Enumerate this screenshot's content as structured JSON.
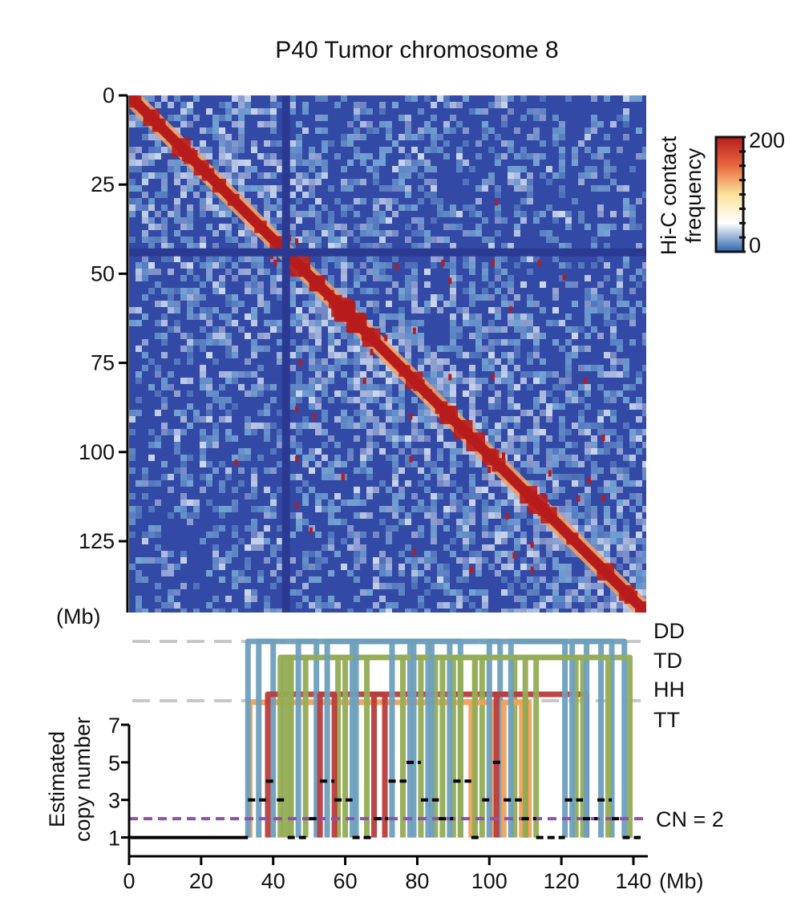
{
  "chart_data": [
    {
      "type": "heatmap",
      "title": "P40 Tumor chromosome 8",
      "axis_unit": "(Mb)",
      "y_ticks": [
        0,
        25,
        50,
        75,
        100,
        125
      ],
      "range_mb": [
        0,
        145
      ],
      "centromere_gap_mb": 44,
      "colorbar": {
        "label_line1": "Hi-C contact",
        "label_line2": "frequency",
        "min_label": "0",
        "max_label": "200",
        "min": 0,
        "max": 200,
        "colors": [
          "#2c66ad",
          "#ffffff",
          "#fbe39c",
          "#e9693f",
          "#b71c1c"
        ]
      },
      "colors": {
        "background": "#3349a6",
        "mid": "#7fb3dc",
        "light": "#e6f2fa",
        "diagonal": "#b71c1c",
        "halo": "#f4a261"
      },
      "hotspots_mb": [
        [
          40,
          45
        ],
        [
          41,
          47
        ],
        [
          48,
          50
        ],
        [
          75,
          48
        ],
        [
          88,
          47
        ],
        [
          102,
          47
        ],
        [
          72,
          68
        ],
        [
          80,
          66
        ],
        [
          90,
          79
        ],
        [
          102,
          79
        ],
        [
          105,
          101
        ],
        [
          118,
          106
        ],
        [
          126,
          113
        ],
        [
          80,
          128
        ],
        [
          96,
          133
        ],
        [
          113,
          133
        ],
        [
          52,
          90
        ],
        [
          60,
          107
        ],
        [
          47,
          115
        ],
        [
          30,
          103
        ],
        [
          129,
          108
        ],
        [
          122,
          51
        ]
      ]
    },
    {
      "type": "line",
      "ylabel_line1": "Estimated",
      "ylabel_line2": "copy number",
      "xlabel": "(Mb)",
      "x_ticks": [
        0,
        20,
        40,
        60,
        80,
        100,
        120,
        140
      ],
      "y_ticks": [
        1,
        3,
        5,
        7
      ],
      "xlim": [
        0,
        142
      ],
      "ylim": [
        0,
        7
      ],
      "reference": {
        "label": "CN = 2",
        "value": 2,
        "color": "#8e4fb0"
      },
      "sv_types": [
        {
          "name": "DD",
          "color": "#6d9fbd"
        },
        {
          "name": "TD",
          "color": "#93ad55"
        },
        {
          "name": "HH",
          "color": "#b93c3c"
        },
        {
          "name": "TT",
          "color": "#f0a15c"
        }
      ],
      "segments": [
        {
          "x0": 0,
          "x1": 33,
          "cn": 1
        },
        {
          "x0": 33,
          "x1": 38,
          "cn": 3
        },
        {
          "x0": 38,
          "x1": 41,
          "cn": 4
        },
        {
          "x0": 41,
          "x1": 44,
          "cn": 3
        },
        {
          "x0": 44,
          "x1": 50,
          "cn": 1
        },
        {
          "x0": 50,
          "x1": 53,
          "cn": 2
        },
        {
          "x0": 53,
          "x1": 57,
          "cn": 4
        },
        {
          "x0": 57,
          "x1": 62,
          "cn": 3
        },
        {
          "x0": 62,
          "x1": 68,
          "cn": 1
        },
        {
          "x0": 68,
          "x1": 72,
          "cn": 2
        },
        {
          "x0": 72,
          "x1": 77,
          "cn": 4
        },
        {
          "x0": 77,
          "x1": 81,
          "cn": 5
        },
        {
          "x0": 81,
          "x1": 86,
          "cn": 3
        },
        {
          "x0": 86,
          "x1": 90,
          "cn": 2
        },
        {
          "x0": 90,
          "x1": 95,
          "cn": 4
        },
        {
          "x0": 95,
          "x1": 98,
          "cn": 1
        },
        {
          "x0": 98,
          "x1": 101,
          "cn": 3
        },
        {
          "x0": 101,
          "x1": 104,
          "cn": 5
        },
        {
          "x0": 104,
          "x1": 109,
          "cn": 3
        },
        {
          "x0": 109,
          "x1": 113,
          "cn": 2
        },
        {
          "x0": 113,
          "x1": 121,
          "cn": 1
        },
        {
          "x0": 121,
          "x1": 126,
          "cn": 3
        },
        {
          "x0": 126,
          "x1": 130,
          "cn": 2
        },
        {
          "x0": 130,
          "x1": 134,
          "cn": 3
        },
        {
          "x0": 134,
          "x1": 137,
          "cn": 2
        },
        {
          "x0": 137,
          "x1": 142,
          "cn": 1
        }
      ],
      "junctions": [
        {
          "type": "TT",
          "x0": 33.5,
          "x1": 111
        },
        {
          "type": "DD",
          "x0": 33,
          "x1": 40
        },
        {
          "type": "DD",
          "x0": 36,
          "x1": 137.5
        },
        {
          "type": "HH",
          "x0": 38.5,
          "x1": 127
        },
        {
          "type": "TD",
          "x0": 42,
          "x1": 44.5
        },
        {
          "type": "TD",
          "x0": 43,
          "x1": 139
        },
        {
          "type": "TD",
          "x0": 45,
          "x1": 58
        },
        {
          "type": "DD",
          "x0": 47,
          "x1": 52
        },
        {
          "type": "TD",
          "x0": 49,
          "x1": 66
        },
        {
          "type": "HH",
          "x0": 53,
          "x1": 57
        },
        {
          "type": "DD",
          "x0": 55,
          "x1": 62
        },
        {
          "type": "TD",
          "x0": 60,
          "x1": 85
        },
        {
          "type": "DD",
          "x0": 63,
          "x1": 78
        },
        {
          "type": "HH",
          "x0": 68,
          "x1": 71
        },
        {
          "type": "DD",
          "x0": 73,
          "x1": 83
        },
        {
          "type": "TD",
          "x0": 76,
          "x1": 90
        },
        {
          "type": "DD",
          "x0": 79,
          "x1": 92
        },
        {
          "type": "TD",
          "x0": 81,
          "x1": 96
        },
        {
          "type": "DD",
          "x0": 84,
          "x1": 89
        },
        {
          "type": "TD",
          "x0": 87,
          "x1": 98
        },
        {
          "type": "TT",
          "x0": 95,
          "x1": 101
        },
        {
          "type": "TD",
          "x0": 96,
          "x1": 107
        },
        {
          "type": "DD",
          "x0": 100,
          "x1": 103
        },
        {
          "type": "HH",
          "x0": 102,
          "x1": 110
        },
        {
          "type": "TT",
          "x0": 104,
          "x1": 109
        },
        {
          "type": "DD",
          "x0": 106,
          "x1": 121
        },
        {
          "type": "TD",
          "x0": 110,
          "x1": 124
        },
        {
          "type": "TD",
          "x0": 113,
          "x1": 126
        },
        {
          "type": "DD",
          "x0": 123,
          "x1": 131
        },
        {
          "type": "DD",
          "x0": 127,
          "x1": 134
        },
        {
          "type": "TD",
          "x0": 92,
          "x1": 133
        }
      ]
    }
  ]
}
